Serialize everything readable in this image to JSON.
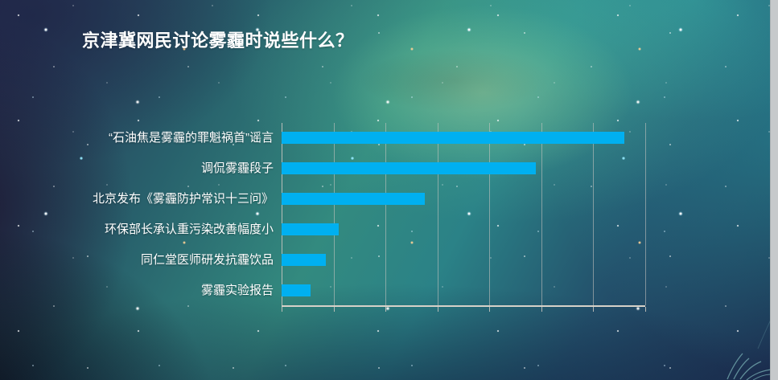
{
  "slide": {
    "title": "京津冀网民讨论雾霾时说些什么？"
  },
  "chart_data": {
    "type": "bar",
    "orientation": "horizontal",
    "title": "京津冀网民讨论雾霾时说些什么？",
    "categories": [
      "“石油焦是雾霾的罪魁祸首”谣言",
      "调侃雾霾段子",
      "北京发布《雾霾防护常识十三问》",
      "环保部长承认重污染改善幅度小",
      "同仁堂医师研发抗霾饮品",
      "雾霾实验报告"
    ],
    "values": [
      6.6,
      4.9,
      2.75,
      1.1,
      0.85,
      0.55
    ],
    "xlabel": "",
    "ylabel": "",
    "xlim": [
      0,
      7
    ],
    "gridline_interval": 1,
    "grid": true,
    "legend": "none",
    "tick_labels_visible": false,
    "bar_color": "#00b0f0",
    "gridline_color": "#cfc9c2",
    "axis_color": "#d6d1c8",
    "label_color": "#ffffff"
  },
  "icons": {
    "watermark": "signature-flourish-icon",
    "background": "nebula-starfield"
  }
}
